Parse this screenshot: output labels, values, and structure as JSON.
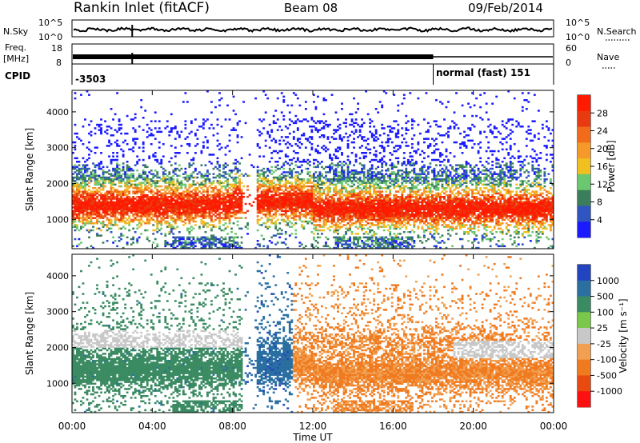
{
  "header": {
    "station_title": "Rankin Inlet (fitACF)",
    "beam_title": "Beam 08",
    "date_title": "09/Feb/2014"
  },
  "noise_panel": {
    "left_label": "N.Sky",
    "right_label": "N.Search",
    "tick_top_left": "10^5",
    "tick_bottom_left": "10^0",
    "tick_top_right": "10^5",
    "tick_bottom_right": "10^0"
  },
  "freq_panel": {
    "left_label_line1": "Freq.",
    "left_label_line2": "[MHz]",
    "left_tick_top": "18",
    "left_tick_bottom": "8",
    "right_label": "Nave",
    "right_tick_top": "60",
    "right_tick_bottom": "0"
  },
  "cpid_panel": {
    "label": "CPID",
    "first_text": "-3503",
    "second_text": "normal (fast) 151",
    "switch_time_hours": 18.0
  },
  "colors": {
    "power_scale": [
      "#1a1aff",
      "#2f55c0",
      "#3a7e5c",
      "#6cc870",
      "#f0c020",
      "#f59a2a",
      "#f26b1a",
      "#e83a10",
      "#ff1a00"
    ],
    "velocity_scale": [
      "#2244c0",
      "#2a6fa0",
      "#3a8a62",
      "#7ac84a",
      "#c8c8c8",
      "#f0a050",
      "#f07a20",
      "#e84a10",
      "#ff1010"
    ]
  },
  "chart_data": [
    {
      "type": "heatmap",
      "panel": "power",
      "ylabel": "Slant Range [km]",
      "xlim_hours": [
        0,
        24
      ],
      "ylim_km": [
        180,
        4600
      ],
      "y_ticks": [
        "1000",
        "2000",
        "3000",
        "4000"
      ],
      "x_ticks": [
        "00:00",
        "04:00",
        "08:00",
        "12:00",
        "16:00",
        "20:00",
        "00:00"
      ],
      "colorbar_label": "Power [dB]",
      "colorbar_ticks": [
        "4",
        "8",
        "12",
        "16",
        "20",
        "24",
        "28"
      ],
      "colorbar_range": [
        0,
        30
      ]
    },
    {
      "type": "heatmap",
      "panel": "velocity",
      "ylabel": "Slant Range [km]",
      "xlabel": "Time UT",
      "xlim_hours": [
        0,
        24
      ],
      "ylim_km": [
        180,
        4600
      ],
      "y_ticks": [
        "1000",
        "2000",
        "3000",
        "4000"
      ],
      "x_ticks": [
        "00:00",
        "04:00",
        "08:00",
        "12:00",
        "16:00",
        "20:00",
        "00:00"
      ],
      "colorbar_label": "Velocity [m s⁻¹]",
      "colorbar_ticks": [
        "1000",
        "500",
        "100",
        "25",
        "-25",
        "-100",
        "-500",
        "-1000"
      ]
    }
  ]
}
